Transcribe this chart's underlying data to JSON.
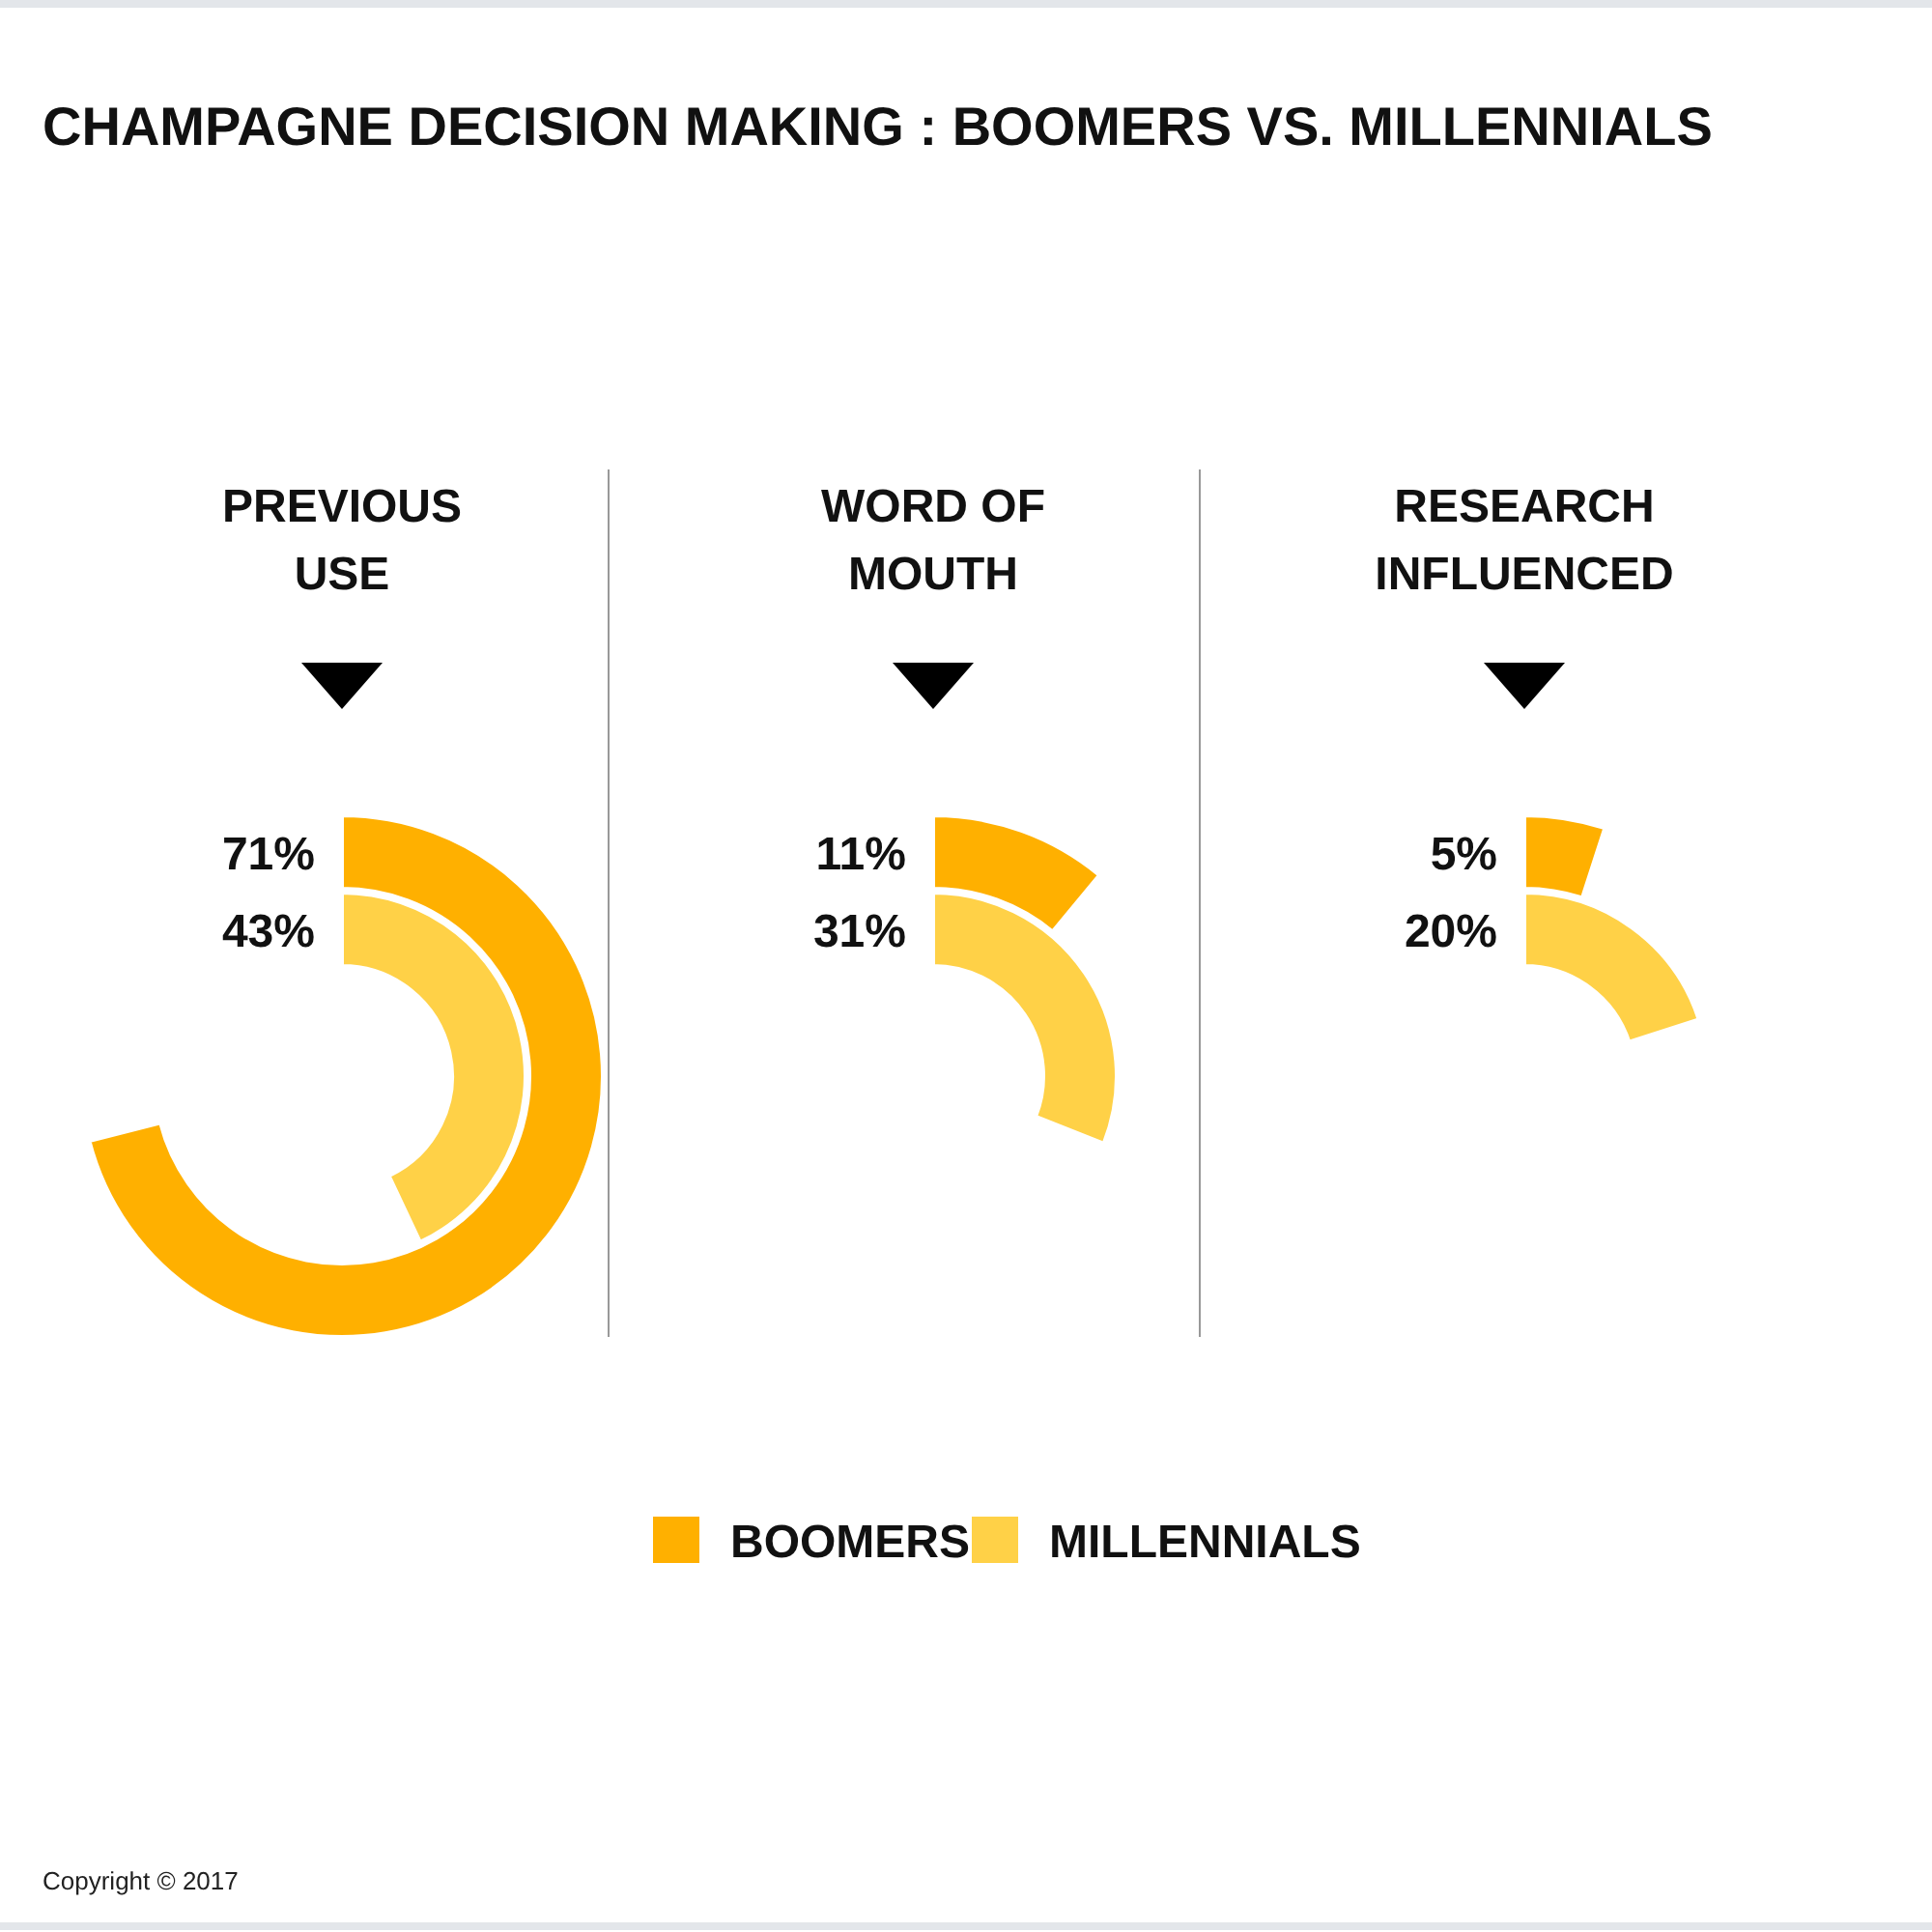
{
  "chart_data": {
    "type": "other",
    "title": "CHAMPAGNE DECISION MAKING : BOOMERS VS. MILLENNIALS",
    "categories": [
      "PREVIOUS USE",
      "WORD OF MOUTH",
      "RESEARCH INFLUENCED"
    ],
    "series": [
      {
        "name": "BOOMERS",
        "color": "#ffb000",
        "values": [
          71,
          11,
          5
        ],
        "value_labels": [
          "71%",
          "11%",
          "5%"
        ]
      },
      {
        "name": "MILLENNIALS",
        "color": "#ffd147",
        "values": [
          43,
          31,
          20
        ],
        "value_labels": [
          "43%",
          "31%",
          "20%"
        ]
      }
    ],
    "legend": "bottom",
    "annotations": [
      "Copyright © 2017"
    ]
  }
}
